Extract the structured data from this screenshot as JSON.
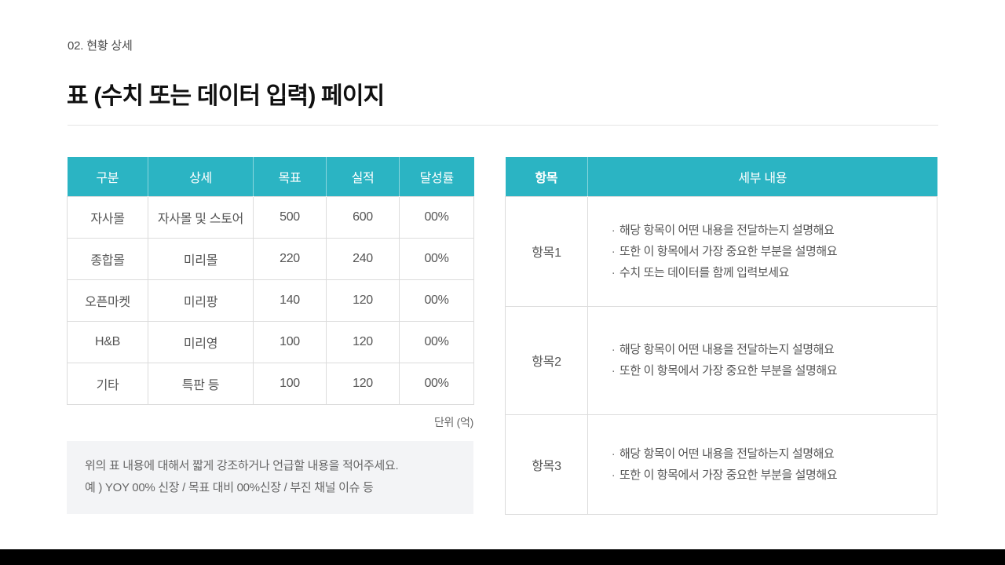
{
  "page": {
    "breadcrumb": "02. 현황 상세",
    "title": "표 (수치 또는 데이터 입력) 페이지",
    "unit_label": "단위 (억)"
  },
  "colors": {
    "accent_teal": "#2bb4c3",
    "border": "#dcdcdc",
    "note_background": "#f3f4f6",
    "bottom_bar": "#000000"
  },
  "left_table": {
    "headers": [
      "구분",
      "상세",
      "목표",
      "실적",
      "달성률"
    ],
    "rows": [
      [
        "자사몰",
        "자사몰 및 스토어",
        "500",
        "600",
        "00%"
      ],
      [
        "종합몰",
        "미리몰",
        "220",
        "240",
        "00%"
      ],
      [
        "오픈마켓",
        "미리팡",
        "140",
        "120",
        "00%"
      ],
      [
        "H&B",
        "미리영",
        "100",
        "120",
        "00%"
      ],
      [
        "기타",
        "특판 등",
        "100",
        "120",
        "00%"
      ]
    ]
  },
  "note": {
    "line1": "위의 표 내용에 대해서 짧게 강조하거나 언급할 내용을 적어주세요.",
    "line2": "예 ) YOY 00% 신장 / 목표 대비 00%신장 / 부진 채널 이슈 등"
  },
  "right_table": {
    "bullet_char": "·",
    "headers": [
      "항목",
      "세부 내용"
    ],
    "rows": [
      {
        "label": "항목1",
        "bullets": [
          "해당 항목이 어떤 내용을 전달하는지 설명해요",
          "또한 이 항목에서 가장 중요한 부분을 설명해요",
          "수치 또는 데이터를 함께 입력보세요"
        ]
      },
      {
        "label": "항목2",
        "bullets": [
          "해당 항목이 어떤 내용을 전달하는지 설명해요",
          "또한 이 항목에서 가장 중요한 부분을 설명해요"
        ]
      },
      {
        "label": "항목3",
        "bullets": [
          "해당 항목이 어떤 내용을 전달하는지 설명해요",
          "또한 이 항목에서 가장 중요한 부분을 설명해요"
        ]
      }
    ]
  }
}
